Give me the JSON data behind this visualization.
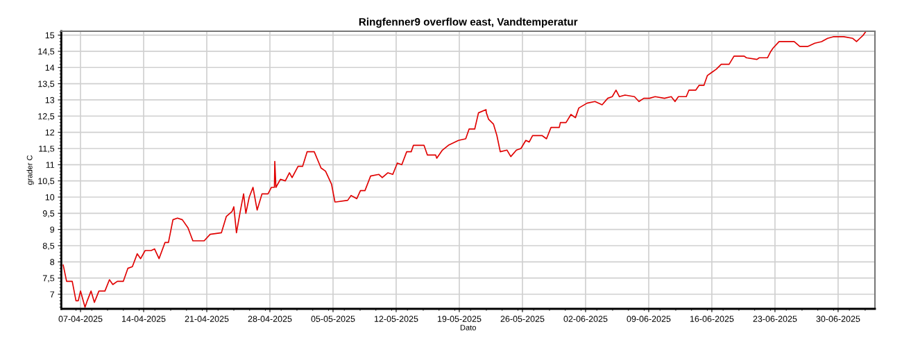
{
  "chart_data": {
    "type": "line",
    "title": "Ringfenner9 overflow east, Vandtemperatur",
    "xlabel": "Dato",
    "ylabel": "grader C",
    "grid": true,
    "marker": "none",
    "line_style": "solid",
    "xlim": [
      "2025-04-04T21:00",
      "2025-07-04T02:00"
    ],
    "ylim": [
      6.55,
      15.12
    ],
    "xticks": [
      {
        "value": "2025-04-07",
        "label": "07-04-2025"
      },
      {
        "value": "2025-04-14",
        "label": "14-04-2025"
      },
      {
        "value": "2025-04-21",
        "label": "21-04-2025"
      },
      {
        "value": "2025-04-28",
        "label": "28-04-2025"
      },
      {
        "value": "2025-05-05",
        "label": "05-05-2025"
      },
      {
        "value": "2025-05-12",
        "label": "12-05-2025"
      },
      {
        "value": "2025-05-19",
        "label": "19-05-2025"
      },
      {
        "value": "2025-05-26",
        "label": "26-05-2025"
      },
      {
        "value": "2025-06-02",
        "label": "02-06-2025"
      },
      {
        "value": "2025-06-09",
        "label": "09-06-2025"
      },
      {
        "value": "2025-06-16",
        "label": "16-06-2025"
      },
      {
        "value": "2025-06-23",
        "label": "23-06-2025"
      },
      {
        "value": "2025-06-30",
        "label": "30-06-2025"
      }
    ],
    "yticks": [
      7,
      {
        "value": 7.5,
        "label": "7,5"
      },
      8,
      {
        "value": 8.5,
        "label": "8,5"
      },
      9,
      {
        "value": 9.5,
        "label": "9,5"
      },
      10,
      {
        "value": 10.5,
        "label": "10,5"
      },
      11,
      {
        "value": 11.5,
        "label": "11,5"
      },
      12,
      {
        "value": 12.5,
        "label": "12,5"
      },
      13,
      {
        "value": 13.5,
        "label": "13,5"
      },
      14,
      {
        "value": 14.5,
        "label": "14,5"
      },
      15
    ],
    "x": [
      "2025-04-05T02:00",
      "2025-04-05T11:00",
      "2025-04-06T02:00",
      "2025-04-06T12:00",
      "2025-04-06T18:00",
      "2025-04-07T00:00",
      "2025-04-07T06:00",
      "2025-04-07T12:00",
      "2025-04-07T18:00",
      "2025-04-08T04:00",
      "2025-04-08T13:00",
      "2025-04-09T01:00",
      "2025-04-09T17:00",
      "2025-04-10T05:00",
      "2025-04-10T14:00",
      "2025-04-11T02:00",
      "2025-04-11T18:00",
      "2025-04-12T06:00",
      "2025-04-12T18:00",
      "2025-04-13T07:00",
      "2025-04-13T16:00",
      "2025-04-14T04:00",
      "2025-04-14T20:00",
      "2025-04-15T05:00",
      "2025-04-15T17:00",
      "2025-04-16T09:00",
      "2025-04-16T18:00",
      "2025-04-17T06:00",
      "2025-04-17T18:00",
      "2025-04-18T07:00",
      "2025-04-18T22:00",
      "2025-04-19T11:00",
      "2025-04-20T17:00",
      "2025-04-21T09:00",
      "2025-04-22T15:00",
      "2025-04-23T04:00",
      "2025-04-23T19:00",
      "2025-04-24T00:00",
      "2025-04-24T07:00",
      "2025-04-24T17:00",
      "2025-04-25T02:00",
      "2025-04-25T08:00",
      "2025-04-25T17:00",
      "2025-04-26T03:00",
      "2025-04-26T14:00",
      "2025-04-27T03:00",
      "2025-04-27T19:00",
      "2025-04-28T04:00",
      "2025-04-28T12:00",
      "2025-04-28T13:00",
      "2025-04-28T16:00",
      "2025-04-29T04:00",
      "2025-04-29T17:00",
      "2025-04-30T04:00",
      "2025-04-30T11:00",
      "2025-05-01T03:00",
      "2025-05-01T15:00",
      "2025-05-02T03:00",
      "2025-05-02T22:00",
      "2025-05-03T16:00",
      "2025-05-04T04:00",
      "2025-05-04T20:00",
      "2025-05-05T05:00",
      "2025-05-05T08:00",
      "2025-05-06T15:00",
      "2025-05-07T00:00",
      "2025-05-07T15:00",
      "2025-05-08T01:00",
      "2025-05-08T13:00",
      "2025-05-09T04:00",
      "2025-05-10T02:00",
      "2025-05-10T11:00",
      "2025-05-11T02:00",
      "2025-05-11T15:00",
      "2025-05-12T03:00",
      "2025-05-12T15:00",
      "2025-05-13T04:00",
      "2025-05-13T16:00",
      "2025-05-13T22:00",
      "2025-05-15T02:00",
      "2025-05-15T11:00",
      "2025-05-16T09:00",
      "2025-05-16T12:00",
      "2025-05-17T03:00",
      "2025-05-17T19:00",
      "2025-05-18T22:00",
      "2025-05-19T17:00",
      "2025-05-20T02:00",
      "2025-05-20T17:00",
      "2025-05-21T03:00",
      "2025-05-21T23:00",
      "2025-05-22T00:00",
      "2025-05-22T06:00",
      "2025-05-22T19:00",
      "2025-05-23T04:00",
      "2025-05-23T13:00",
      "2025-05-24T07:00",
      "2025-05-24T17:00",
      "2025-05-25T08:00",
      "2025-05-25T20:00",
      "2025-05-26T09:00",
      "2025-05-26T18:00",
      "2025-05-27T03:00",
      "2025-05-28T04:00",
      "2025-05-28T16:00",
      "2025-05-29T04:00",
      "2025-05-30T02:00",
      "2025-05-30T05:00",
      "2025-05-30T20:00",
      "2025-05-31T09:00",
      "2025-05-31T21:00",
      "2025-06-01T06:00",
      "2025-06-02T04:00",
      "2025-06-03T01:00",
      "2025-06-03T20:00",
      "2025-06-04T11:00",
      "2025-06-04T23:00",
      "2025-06-05T09:00",
      "2025-06-05T18:00",
      "2025-06-06T09:00",
      "2025-06-07T10:00",
      "2025-06-07T22:00",
      "2025-06-08T11:00",
      "2025-06-09T02:00",
      "2025-06-09T17:00",
      "2025-06-10T18:00",
      "2025-06-11T12:00",
      "2025-06-11T22:00",
      "2025-06-12T07:00",
      "2025-06-13T04:00",
      "2025-06-13T11:00",
      "2025-06-14T05:00",
      "2025-06-14T14:00",
      "2025-06-15T03:00",
      "2025-06-15T12:00",
      "2025-06-16T00:00",
      "2025-06-16T12:00",
      "2025-06-17T01:00",
      "2025-06-17T22:00",
      "2025-06-18T11:00",
      "2025-06-19T14:00",
      "2025-06-19T20:00",
      "2025-06-21T00:00",
      "2025-06-21T06:00",
      "2025-06-22T04:00",
      "2025-06-22T13:00",
      "2025-06-22T19:00",
      "2025-06-23T11:00",
      "2025-06-25T03:00",
      "2025-06-25T18:00",
      "2025-06-26T15:00",
      "2025-06-27T10:00",
      "2025-06-28T04:00",
      "2025-06-28T20:00",
      "2025-06-29T11:00",
      "2025-06-30T15:00",
      "2025-07-01T15:00",
      "2025-07-02T01:00",
      "2025-07-02T10:00",
      "2025-07-02T19:00",
      "2025-07-03T01:00"
    ],
    "series": [
      {
        "color": "#e00000",
        "values": [
          7.9,
          7.4,
          7.4,
          6.8,
          6.8,
          7.1,
          6.85,
          6.6,
          6.8,
          7.1,
          6.75,
          7.1,
          7.1,
          7.45,
          7.3,
          7.4,
          7.4,
          7.8,
          7.85,
          8.25,
          8.1,
          8.35,
          8.35,
          8.4,
          8.1,
          8.6,
          8.6,
          9.3,
          9.35,
          9.3,
          9.05,
          8.65,
          8.65,
          8.85,
          8.9,
          9.4,
          9.55,
          9.7,
          8.9,
          9.55,
          10.1,
          9.5,
          10.0,
          10.3,
          9.6,
          10.1,
          10.1,
          10.3,
          10.3,
          11.1,
          10.3,
          10.55,
          10.5,
          10.75,
          10.6,
          10.95,
          10.95,
          11.4,
          11.4,
          10.9,
          10.8,
          10.4,
          9.85,
          9.85,
          9.9,
          10.05,
          9.95,
          10.2,
          10.2,
          10.65,
          10.7,
          10.6,
          10.75,
          10.7,
          11.05,
          11.0,
          11.4,
          11.4,
          11.6,
          11.6,
          11.3,
          11.3,
          11.2,
          11.45,
          11.6,
          11.75,
          11.8,
          12.1,
          12.1,
          12.6,
          12.7,
          12.6,
          12.4,
          12.25,
          11.9,
          11.4,
          11.45,
          11.25,
          11.45,
          11.5,
          11.75,
          11.7,
          11.9,
          11.9,
          11.8,
          12.15,
          12.15,
          12.3,
          12.3,
          12.55,
          12.45,
          12.75,
          12.9,
          12.95,
          12.85,
          13.05,
          13.1,
          13.3,
          13.1,
          13.15,
          13.1,
          12.95,
          13.05,
          13.05,
          13.1,
          13.05,
          13.1,
          12.95,
          13.1,
          13.1,
          13.3,
          13.3,
          13.45,
          13.45,
          13.75,
          13.85,
          13.95,
          14.1,
          14.1,
          14.35,
          14.35,
          14.3,
          14.25,
          14.3,
          14.3,
          14.5,
          14.6,
          14.8,
          14.8,
          14.65,
          14.65,
          14.75,
          14.8,
          14.9,
          14.95,
          14.95,
          14.9,
          14.8,
          14.9,
          15.0,
          15.1
        ]
      }
    ]
  }
}
